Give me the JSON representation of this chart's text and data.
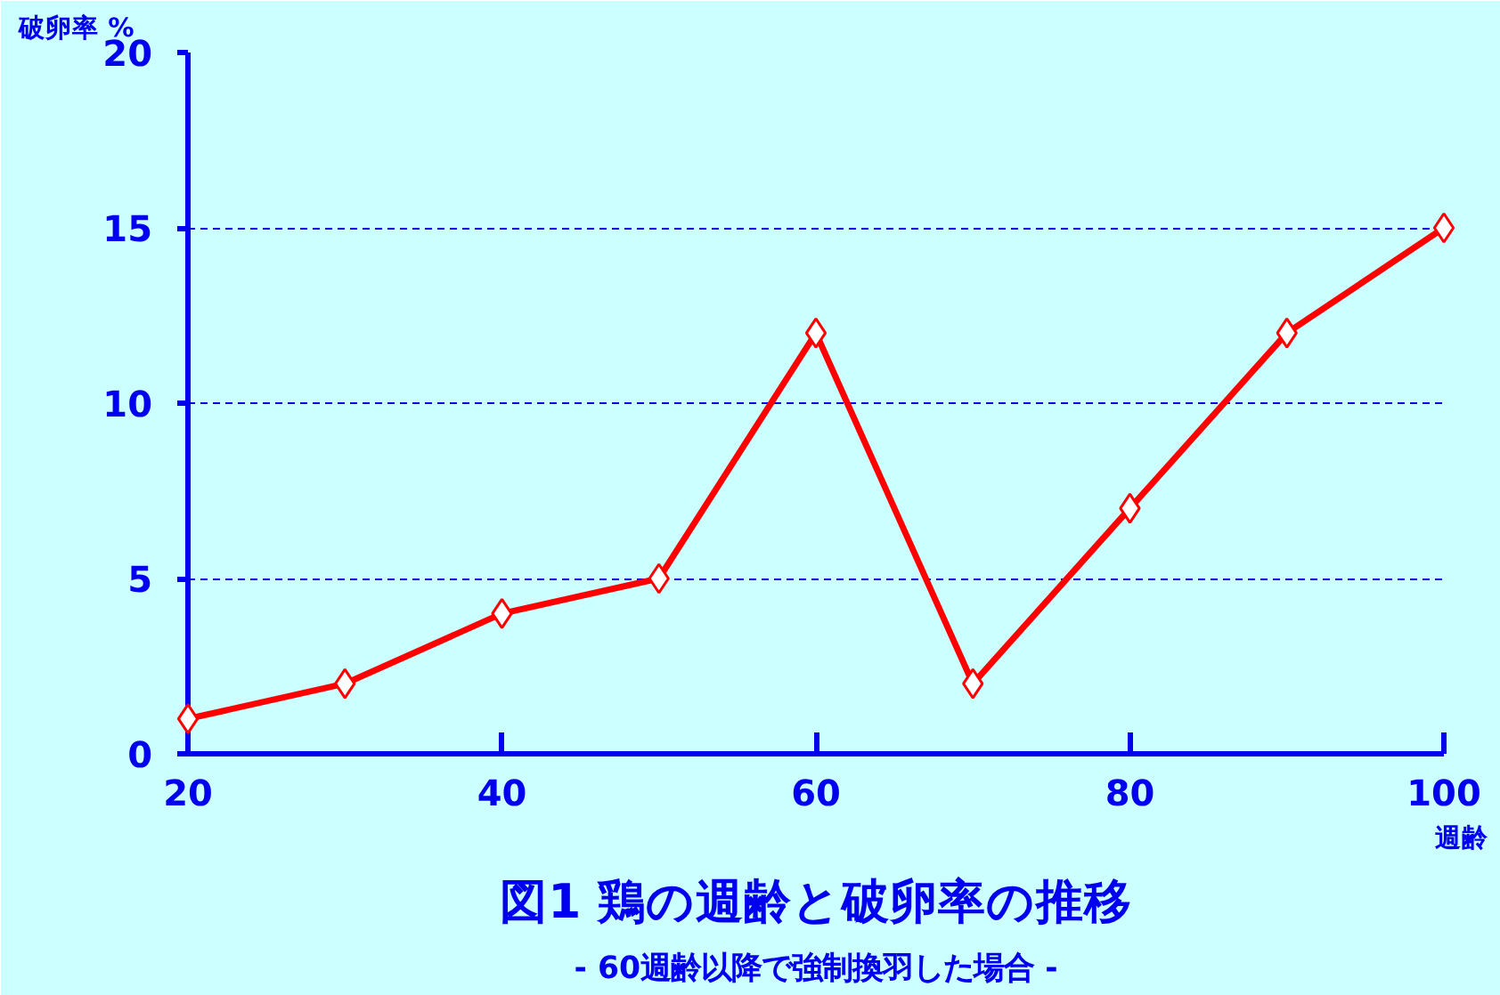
{
  "chart_data": {
    "type": "line",
    "title": "図1 鶏の週齢と破卵率の推移",
    "subtitle": "- 60週齢以降で強制換羽した場合 -",
    "xlabel": "週齢",
    "ylabel": "破卵率 %",
    "x": [
      20,
      30,
      40,
      50,
      60,
      70,
      80,
      90,
      100
    ],
    "series": [
      {
        "color": "#ff0000",
        "values": [
          1,
          2,
          4,
          5,
          12,
          2,
          7,
          12,
          15
        ]
      }
    ],
    "xlim": [
      20,
      100
    ],
    "xticks": [
      20,
      40,
      60,
      80,
      100
    ],
    "ylim": [
      0,
      20
    ],
    "yticks": [
      0,
      5,
      10,
      15,
      20
    ],
    "grid": "y",
    "marker": "diamond",
    "line_style": "solid"
  }
}
